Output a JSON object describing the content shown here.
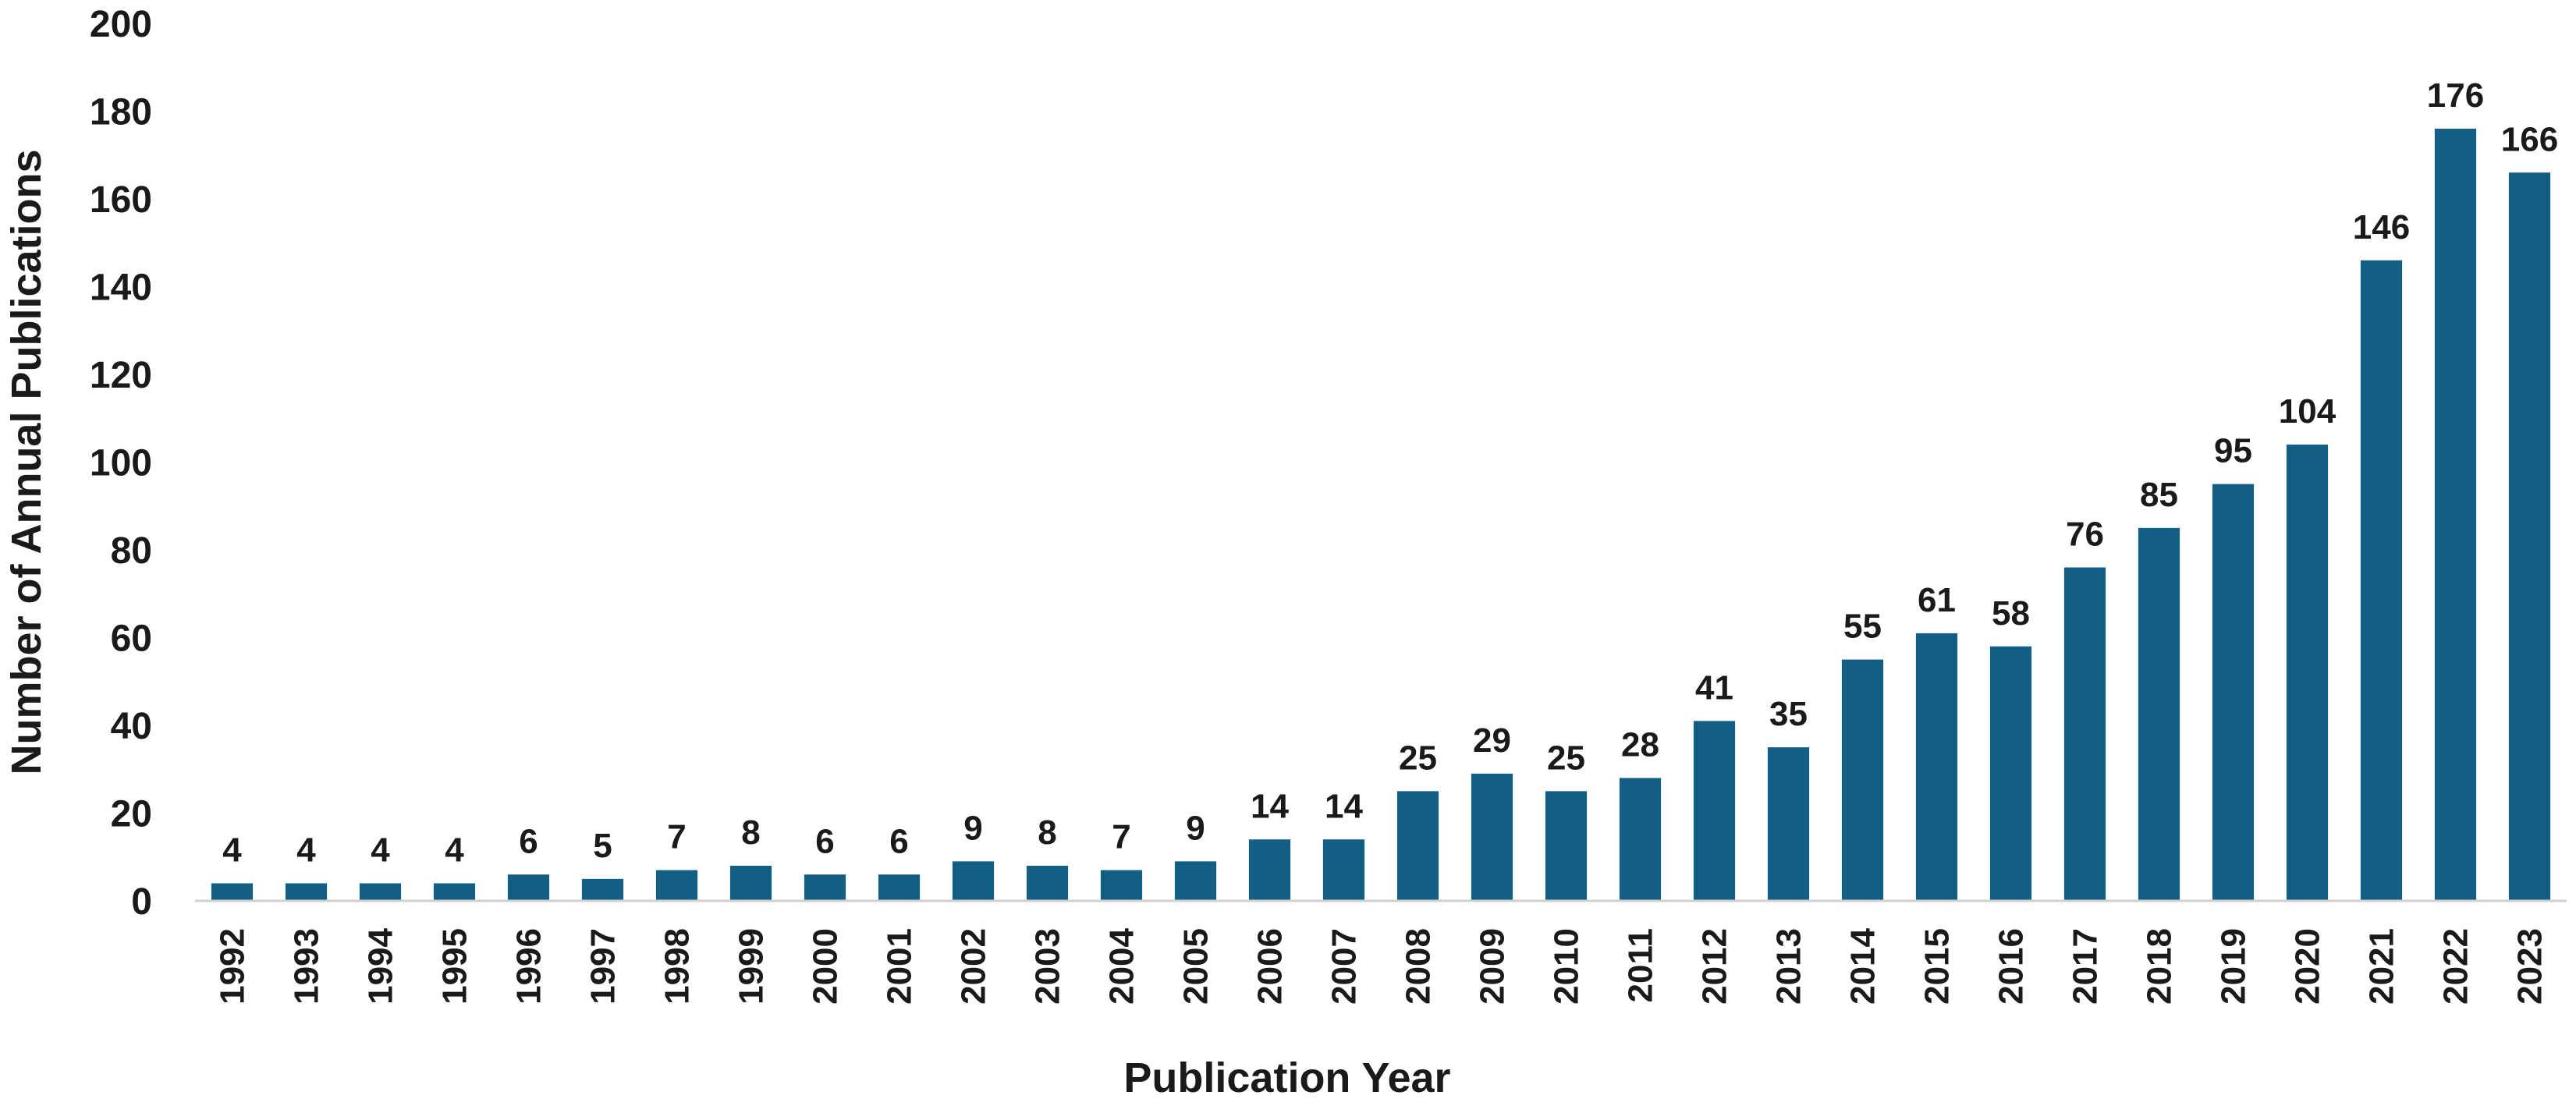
{
  "chart_data": {
    "type": "bar",
    "title": "",
    "xlabel": "Publication Year",
    "ylabel": "Number of Annual Publications",
    "ylim": [
      0,
      200
    ],
    "yticks": [
      0,
      20,
      40,
      60,
      80,
      100,
      120,
      140,
      160,
      180,
      200
    ],
    "grid": false,
    "legend": "none",
    "bar_color": "#135E83",
    "categories": [
      "1992",
      "1993",
      "1994",
      "1995",
      "1996",
      "1997",
      "1998",
      "1999",
      "2000",
      "2001",
      "2002",
      "2003",
      "2004",
      "2005",
      "2006",
      "2007",
      "2008",
      "2009",
      "2010",
      "2011",
      "2012",
      "2013",
      "2014",
      "2015",
      "2016",
      "2017",
      "2018",
      "2019",
      "2020",
      "2021",
      "2022",
      "2023"
    ],
    "values": [
      4,
      4,
      4,
      4,
      6,
      5,
      7,
      8,
      6,
      6,
      9,
      8,
      7,
      9,
      14,
      14,
      25,
      29,
      25,
      28,
      41,
      35,
      55,
      61,
      58,
      76,
      85,
      95,
      104,
      146,
      176,
      166
    ]
  }
}
